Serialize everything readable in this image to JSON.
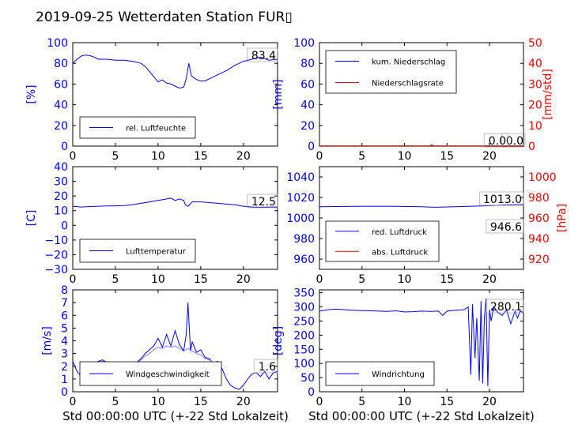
{
  "title": "2019-09-25 Wetterdaten Station FUR▯",
  "colors": {
    "blue": "#0000ff",
    "red": "#ff0000",
    "lightblue": "#8080ff",
    "black": "#000000"
  },
  "xlabel": "Std 00:00:00 UTC (+-22 Std Lokalzeit)",
  "chart_data": [
    {
      "id": "humidity",
      "type": "line",
      "ylabel": "[%]",
      "xlim": [
        0,
        24
      ],
      "ylim": [
        0,
        100
      ],
      "xticks": [
        "0",
        "5",
        "10",
        "15",
        "20"
      ],
      "yticks": [
        "0",
        "20",
        "40",
        "60",
        "80",
        "100"
      ],
      "annotation": "83.4",
      "legend": {
        "placement": "bottom-left",
        "entries": [
          "rel. Luftfeuchte"
        ]
      },
      "series": [
        {
          "name": "rel. Luftfeuchte",
          "color": "#0000ff",
          "x": [
            0,
            0.5,
            1,
            1.5,
            2,
            2.5,
            3,
            4,
            5,
            6,
            7,
            8,
            8.5,
            9,
            9.5,
            10,
            10.5,
            11,
            11.5,
            12,
            12.5,
            13,
            13.3,
            13.6,
            13.9,
            14.2,
            14.6,
            15,
            15.5,
            16,
            17,
            18,
            19,
            20,
            21,
            22,
            23,
            24
          ],
          "y": [
            80,
            84,
            87,
            88,
            87.5,
            86,
            84,
            84,
            83,
            83,
            82,
            80,
            77,
            72,
            67,
            62,
            64,
            61,
            60,
            58,
            56,
            57,
            65,
            80,
            68,
            66,
            64,
            63,
            63,
            65,
            69,
            73,
            78,
            82,
            84,
            86,
            83,
            84
          ]
        }
      ]
    },
    {
      "id": "precipitation",
      "type": "line",
      "ylabel": "[mm]",
      "ylabel2": "[mm/std]",
      "xlim": [
        0,
        24
      ],
      "ylim": [
        0,
        100
      ],
      "ylim2": [
        0,
        50
      ],
      "xticks": [
        "0",
        "5",
        "10",
        "15",
        "20"
      ],
      "yticks": [
        "0",
        "20",
        "40",
        "60",
        "80",
        "100"
      ],
      "yticks2": [
        "0",
        "10",
        "20",
        "30",
        "40",
        "50"
      ],
      "annotation": "0.0",
      "annotation2": "0.0",
      "legend": {
        "placement": "top-left",
        "entries": [
          "kum. Niederschlag",
          "Niederschlagsrate"
        ]
      },
      "series": [
        {
          "name": "kum. Niederschlag",
          "color": "#0000ff",
          "x": [
            0,
            24
          ],
          "y": [
            0,
            0
          ]
        },
        {
          "name": "Niederschlagsrate",
          "color": "#ff0000",
          "x": [
            0,
            13,
            13.2,
            13.25,
            13.3,
            13.4,
            24
          ],
          "y": [
            0.3,
            0.3,
            1.2,
            0.3,
            1.0,
            0.3,
            0.3
          ]
        }
      ]
    },
    {
      "id": "temperature",
      "type": "line",
      "ylabel": "[C]",
      "xlim": [
        0,
        24
      ],
      "ylim": [
        -30,
        40
      ],
      "xticks": [
        "0",
        "5",
        "10",
        "15",
        "20"
      ],
      "yticks": [
        "−30",
        "−20",
        "−10",
        "0",
        "10",
        "20",
        "30",
        "40"
      ],
      "annotation": "12.5",
      "legend": {
        "placement": "bottom-left",
        "entries": [
          "Lufttemperatur"
        ]
      },
      "series": [
        {
          "name": "Lufttemperatur",
          "color": "#0000ff",
          "x": [
            0,
            1,
            2,
            3,
            4,
            5,
            6,
            7,
            8,
            9,
            10,
            11,
            11.5,
            12,
            12.5,
            13,
            13.2,
            13.5,
            14,
            15,
            16,
            17,
            18,
            19,
            20,
            21,
            22,
            23,
            24
          ],
          "y": [
            13,
            12.5,
            12.8,
            13,
            13.2,
            13.3,
            13.5,
            14,
            15,
            16,
            17,
            18,
            18.5,
            17,
            18,
            17,
            14,
            13,
            16,
            16,
            15.5,
            15,
            14.5,
            14,
            13,
            12.5,
            12.3,
            12.5,
            12.5
          ]
        }
      ]
    },
    {
      "id": "pressure",
      "type": "line",
      "ylabel2": "[hPa]",
      "xlim": [
        0,
        24
      ],
      "ylim": [
        950,
        1050
      ],
      "ylim2": [
        910,
        1010
      ],
      "xticks": [
        "0",
        "5",
        "10",
        "15",
        "20"
      ],
      "yticks": [
        "960",
        "980",
        "1000",
        "1020",
        "1040"
      ],
      "yticks2": [
        "920",
        "940",
        "960",
        "980",
        "1000"
      ],
      "annotation": "1013.0",
      "annotation2": "946.6",
      "legend": {
        "placement": "bottom-left",
        "entries": [
          "red. Luftdruck",
          "abs. Luftdruck"
        ]
      },
      "series": [
        {
          "name": "red. Luftdruck",
          "color": "#0000ff",
          "x": [
            0,
            3,
            6,
            9,
            12,
            13.5,
            15,
            18,
            20,
            22,
            24
          ],
          "y": [
            1011,
            1011.2,
            1011.5,
            1011.3,
            1011,
            1010.5,
            1010.8,
            1011.5,
            1012,
            1012.8,
            1013
          ]
        },
        {
          "name": "abs. Luftdruck",
          "color": "#ff0000",
          "x": [
            0,
            3,
            6,
            9,
            12,
            13.5,
            15,
            18,
            20,
            22,
            24
          ],
          "y": [
            944.5,
            944.7,
            945,
            944.8,
            944.5,
            944,
            944.3,
            945,
            945.5,
            946.2,
            946.6
          ]
        }
      ]
    },
    {
      "id": "wind",
      "type": "line",
      "ylabel": "[m/s]",
      "xlim": [
        0,
        24
      ],
      "ylim": [
        0,
        8
      ],
      "xticks": [
        "0",
        "5",
        "10",
        "15",
        "20"
      ],
      "yticks": [
        "0",
        "1",
        "2",
        "3",
        "4",
        "5",
        "6",
        "7",
        "8"
      ],
      "annotation": "1.6",
      "legend": {
        "placement": "bottom-center",
        "entries": [
          "Windgeschwindigkeit"
        ]
      },
      "series": [
        {
          "name": "Windgeschwindigkeit",
          "color": "#0000ff",
          "x": [
            0,
            0.5,
            1,
            1.5,
            2,
            2.5,
            3,
            3.5,
            4,
            4.5,
            5,
            5.5,
            6,
            6.5,
            7,
            7.5,
            8,
            8.5,
            9,
            9.5,
            10,
            10.5,
            11,
            11.5,
            12,
            12.5,
            13,
            13.3,
            13.5,
            13.8,
            14,
            14.5,
            15,
            15.5,
            16,
            16.5,
            17,
            17.5,
            18,
            18.5,
            19,
            19.5,
            20,
            20.5,
            21,
            21.5,
            22,
            22.5,
            23,
            23.5,
            24
          ],
          "y": [
            2.4,
            1.6,
            1.2,
            1.5,
            1.8,
            2.2,
            2.4,
            2.5,
            2.3,
            2.2,
            2.1,
            2.2,
            2.0,
            2.1,
            2.0,
            2.3,
            2.6,
            3.0,
            3.3,
            3.6,
            4.2,
            3.5,
            4.5,
            3.6,
            4.8,
            3.7,
            3.2,
            4.5,
            7.0,
            3.2,
            3.9,
            3.1,
            3.3,
            2.7,
            2.6,
            2.2,
            2.4,
            1.8,
            1.0,
            0.5,
            0.3,
            0.2,
            0.5,
            1.0,
            1.4,
            1.5,
            1.2,
            1.6,
            1.0,
            1.5,
            1.6
          ]
        },
        {
          "name": "",
          "color": "#8080ff",
          "x": [
            0.5,
            1,
            1.5,
            2,
            2.5,
            3,
            3.5,
            4,
            4.5,
            5,
            5.5,
            6,
            6.5,
            7,
            7.5,
            8,
            8.5,
            9,
            9.5,
            10,
            10.5,
            11,
            11.5,
            12,
            12.5,
            13,
            13.5,
            14,
            14.5,
            15,
            15.5,
            16,
            16.5,
            17
          ],
          "y": [
            1.5,
            1.4,
            1.6,
            1.9,
            2.2,
            2.3,
            2.4,
            2.3,
            2.2,
            2.1,
            2.1,
            2.0,
            2.1,
            2.0,
            2.2,
            2.5,
            2.8,
            3.0,
            3.3,
            3.5,
            3.4,
            3.6,
            3.5,
            3.6,
            3.4,
            3.2,
            3.4,
            3.2,
            3.0,
            2.9,
            2.6,
            2.5,
            2.3,
            2.0
          ]
        }
      ]
    },
    {
      "id": "direction",
      "type": "line",
      "ylabel": "[deg]",
      "xlim": [
        0,
        24
      ],
      "ylim": [
        0,
        360
      ],
      "xticks": [
        "0",
        "5",
        "10",
        "15",
        "20"
      ],
      "yticks": [
        "0",
        "50",
        "100",
        "150",
        "200",
        "250",
        "300",
        "350"
      ],
      "annotation": "280.1",
      "legend": {
        "placement": "bottom-left",
        "entries": [
          "Windrichtung"
        ]
      },
      "series": [
        {
          "name": "Windrichtung",
          "color": "#0000ff",
          "x": [
            0,
            1,
            2,
            3,
            4,
            5,
            6,
            7,
            8,
            9,
            10,
            11,
            12,
            13,
            14,
            14.5,
            15,
            16,
            17,
            17.5,
            17.8,
            18,
            18.3,
            18.5,
            18.8,
            19,
            19.2,
            19.4,
            19.6,
            19.8,
            20,
            20.2,
            20.5,
            21,
            21.5,
            22,
            22.5,
            23,
            23.3,
            23.6,
            24
          ],
          "y": [
            285,
            290,
            292,
            290,
            288,
            287,
            286,
            285,
            284,
            286,
            282,
            283,
            285,
            284,
            285,
            270,
            285,
            288,
            290,
            300,
            60,
            310,
            120,
            260,
            40,
            320,
            30,
            260,
            330,
            20,
            290,
            250,
            300,
            280,
            270,
            290,
            240,
            285,
            260,
            285,
            280
          ]
        }
      ]
    }
  ]
}
